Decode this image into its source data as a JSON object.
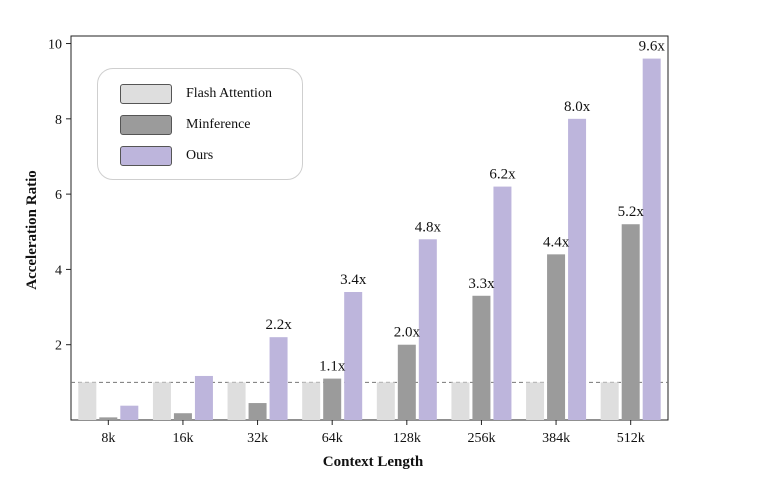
{
  "chart_data": {
    "type": "bar",
    "title": "",
    "xlabel": "Context Length",
    "ylabel": "Acceleration Ratio",
    "categories": [
      "8k",
      "16k",
      "32k",
      "64k",
      "128k",
      "256k",
      "384k",
      "512k"
    ],
    "ylim": [
      0,
      10.2
    ],
    "yticks": [
      2,
      4,
      6,
      8,
      10
    ],
    "reference_line": {
      "y": 1.0,
      "style": "dashed",
      "color": "#777777"
    },
    "grid": false,
    "legend_position": "top-left",
    "series": [
      {
        "name": "Flash Attention",
        "color": "#dedede",
        "values": [
          1.0,
          1.0,
          1.0,
          1.0,
          1.0,
          1.0,
          1.0,
          1.0
        ],
        "labels": [
          "",
          "",
          "",
          "",
          "",
          "",
          "",
          ""
        ]
      },
      {
        "name": "Minference",
        "color": "#9b9b9b",
        "values": [
          0.07,
          0.18,
          0.45,
          1.1,
          2.0,
          3.3,
          4.4,
          5.2
        ],
        "labels": [
          "",
          "",
          "",
          "1.1x",
          "2.0x",
          "3.3x",
          "4.4x",
          "5.2x"
        ]
      },
      {
        "name": "Ours",
        "color": "#bdb5dc",
        "values": [
          0.38,
          1.17,
          2.2,
          3.4,
          4.8,
          6.2,
          8.0,
          9.6
        ],
        "labels": [
          "",
          "",
          "2.2x",
          "3.4x",
          "4.8x",
          "6.2x",
          "8.0x",
          "9.6x"
        ]
      }
    ]
  }
}
